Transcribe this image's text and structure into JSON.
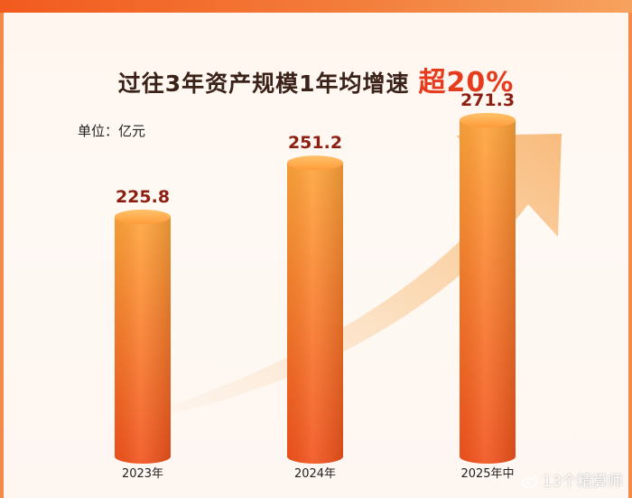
{
  "header": {
    "title_main": "过往3年资产规模1年均增速",
    "title_highlight": "超20%"
  },
  "unit_label": "单位：亿元",
  "watermark": "13个精算师",
  "colors": {
    "bar_light": "#ffa43a",
    "bar_dark": "#f2521c",
    "value_text": "#8c1f12",
    "highlight": "#e63b1d",
    "arrow": "#f9c07a"
  },
  "chart_data": {
    "type": "bar",
    "categories": [
      "2023年",
      "2024年",
      "2025年中"
    ],
    "values": [
      225.8,
      251.2,
      271.3
    ],
    "value_labels": [
      "225.8",
      "251.2",
      "271.3"
    ],
    "ylabel": "单位：亿元",
    "trend_arrow": true,
    "grid": false
  }
}
